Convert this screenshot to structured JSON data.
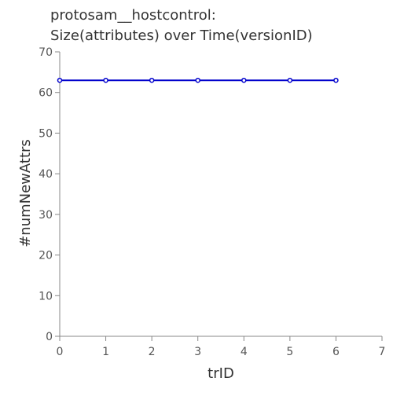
{
  "chart_data": {
    "type": "line",
    "title_lines": [
      "protosam__hostcontrol:",
      "Size(attributes) over Time(versionID)"
    ],
    "xlabel": "trID",
    "ylabel": "#numNewAttrs",
    "xlim": [
      0,
      7
    ],
    "ylim": [
      0,
      70
    ],
    "x_ticks": [
      0,
      1,
      2,
      3,
      4,
      5,
      6,
      7
    ],
    "y_ticks": [
      0,
      10,
      20,
      30,
      40,
      50,
      60,
      70
    ],
    "grid": false,
    "series": [
      {
        "color": "#0000cc",
        "x": [
          0,
          1,
          2,
          3,
          4,
          5,
          6
        ],
        "y": [
          63,
          63,
          63,
          63,
          63,
          63,
          63
        ]
      }
    ]
  }
}
